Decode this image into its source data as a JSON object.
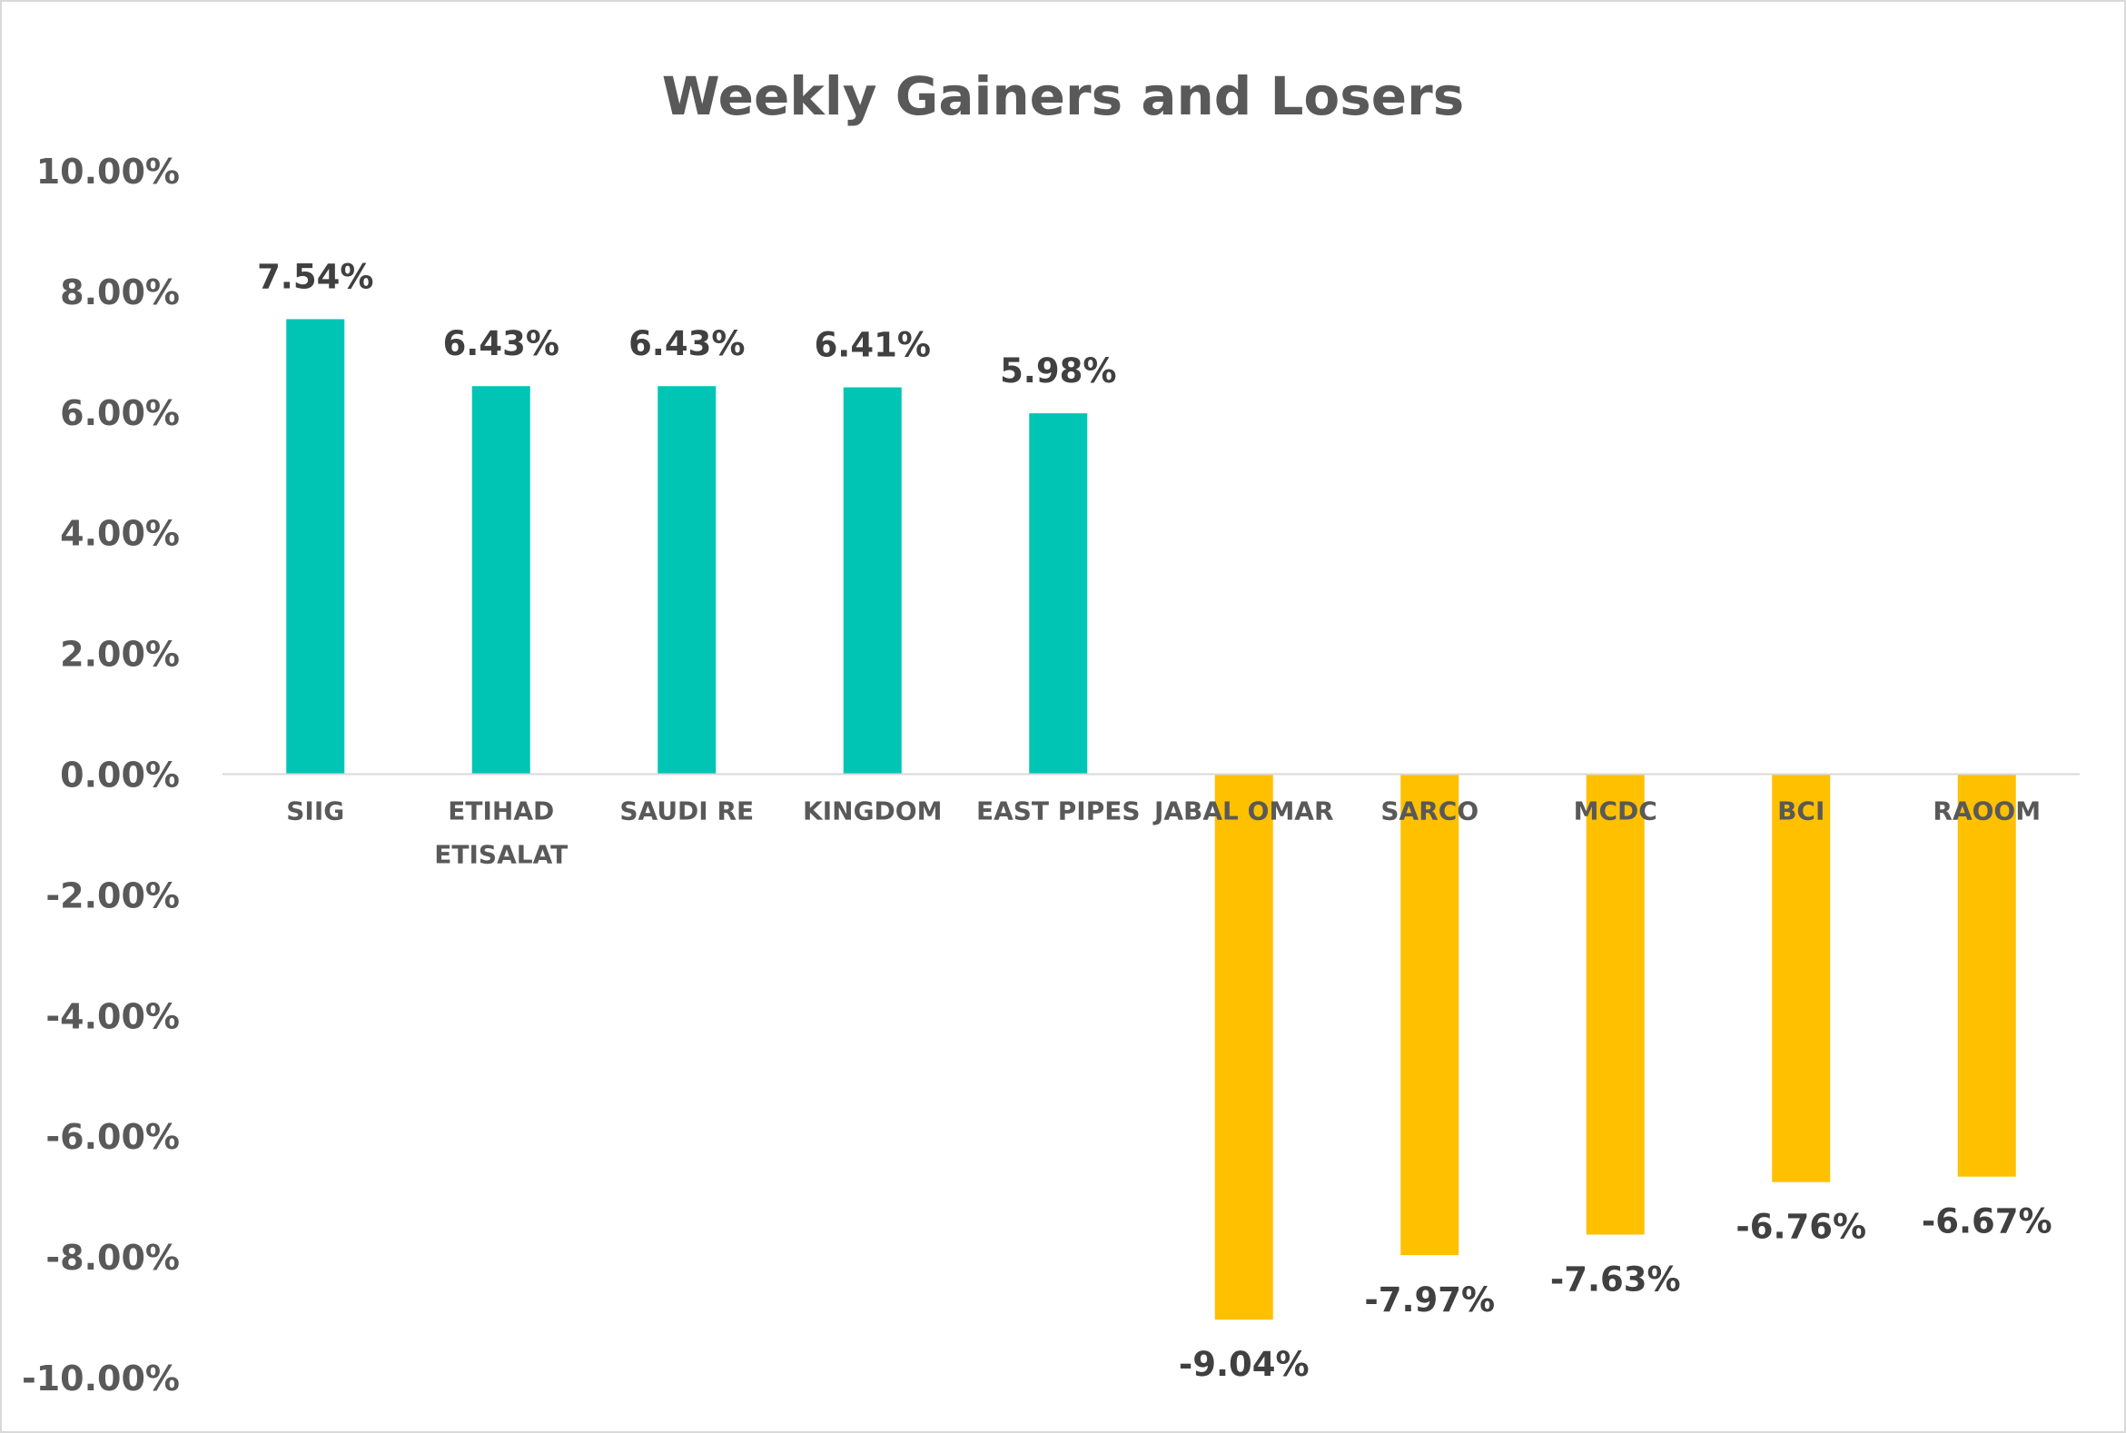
{
  "chart_data": {
    "type": "bar",
    "title": "Weekly Gainers and Losers",
    "xlabel": "",
    "ylabel": "",
    "ylim": [
      -10,
      10
    ],
    "y_tick_step": 2,
    "y_tick_labels": [
      "10.00%",
      "8.00%",
      "6.00%",
      "4.00%",
      "2.00%",
      "0.00%",
      "-2.00%",
      "-4.00%",
      "-6.00%",
      "-8.00%",
      "-10.00%"
    ],
    "grid": false,
    "legend": "none",
    "categories": [
      [
        "SIIG"
      ],
      [
        "ETIHAD",
        "ETISALAT"
      ],
      [
        "SAUDI RE"
      ],
      [
        "KINGDOM"
      ],
      [
        "EAST PIPES"
      ],
      [
        "JABAL OMAR"
      ],
      [
        "SARCO"
      ],
      [
        "MCDC"
      ],
      [
        "BCI"
      ],
      [
        "RAOOM"
      ]
    ],
    "values": [
      7.54,
      6.43,
      6.43,
      6.41,
      5.98,
      -9.04,
      -7.97,
      -7.63,
      -6.76,
      -6.67
    ],
    "data_labels": [
      "7.54%",
      "6.43%",
      "6.43%",
      "6.41%",
      "5.98%",
      "-9.04%",
      "-7.97%",
      "-7.63%",
      "-6.76%",
      "-6.67%"
    ],
    "colors": {
      "gainers": "#00c5b5",
      "losers": "#ffc000",
      "axis": "#d9d9d9",
      "text": "#595959",
      "label_text": "#404040"
    }
  }
}
